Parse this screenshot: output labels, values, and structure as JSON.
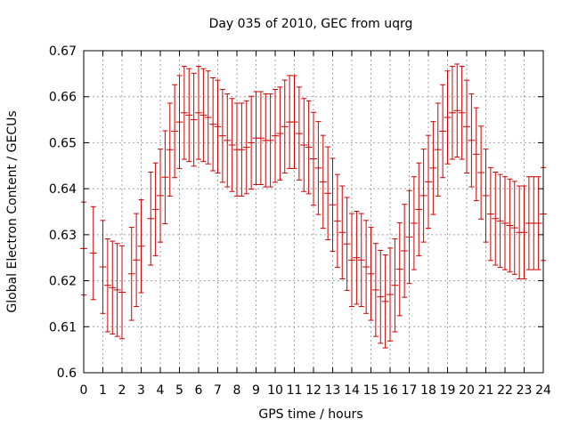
{
  "chart_data": {
    "type": "scatter",
    "title": "Day 035 of 2010, GEC from uqrg",
    "xlabel": "GPS time / hours",
    "ylabel": "Global Electron Content / GECUs",
    "xlim": [
      0,
      24
    ],
    "ylim": [
      0.6,
      0.67
    ],
    "x_ticks": [
      "0",
      "1",
      "2",
      "3",
      "4",
      "5",
      "6",
      "7",
      "8",
      "9",
      "10",
      "11",
      "12",
      "13",
      "14",
      "15",
      "16",
      "17",
      "18",
      "19",
      "20",
      "21",
      "22",
      "23",
      "24"
    ],
    "y_ticks": [
      "0.6",
      "0.61",
      "0.62",
      "0.63",
      "0.64",
      "0.65",
      "0.66",
      "0.67"
    ],
    "grid": true,
    "legend": "none",
    "error_bars": true,
    "color": "#cc0000",
    "series": [
      {
        "x": [
          0.0,
          0.5,
          1.0,
          1.25,
          1.5,
          1.75,
          2.0,
          2.5,
          2.75,
          3.0,
          3.5,
          3.75,
          4.0,
          4.25,
          4.5,
          4.75,
          5.0,
          5.25,
          5.5,
          5.75,
          6.0,
          6.25,
          6.5,
          6.75,
          7.0,
          7.25,
          7.5,
          7.75,
          8.0,
          8.25,
          8.5,
          8.75,
          9.0,
          9.25,
          9.5,
          9.75,
          10.0,
          10.25,
          10.5,
          10.75,
          11.0,
          11.25,
          11.5,
          11.75,
          12.0,
          12.25,
          12.5,
          12.75,
          13.0,
          13.25,
          13.5,
          13.75,
          14.0,
          14.25,
          14.5,
          14.75,
          15.0,
          15.25,
          15.5,
          15.75,
          16.0,
          16.25,
          16.5,
          16.75,
          17.0,
          17.25,
          17.5,
          17.75,
          18.0,
          18.25,
          18.5,
          18.75,
          19.0,
          19.25,
          19.5,
          19.75,
          20.0,
          20.25,
          20.5,
          20.75,
          21.0,
          21.25,
          21.5,
          21.75,
          22.0,
          22.25,
          22.5,
          22.75,
          23.0,
          23.25,
          23.5,
          23.75,
          24.0
        ],
        "y": [
          0.627,
          0.626,
          0.623,
          0.619,
          0.6185,
          0.618,
          0.6175,
          0.6215,
          0.6245,
          0.6275,
          0.6335,
          0.6355,
          0.6385,
          0.6425,
          0.6485,
          0.6525,
          0.6545,
          0.6565,
          0.656,
          0.655,
          0.6565,
          0.656,
          0.6555,
          0.654,
          0.6535,
          0.6515,
          0.6505,
          0.6495,
          0.6485,
          0.6485,
          0.649,
          0.65,
          0.651,
          0.651,
          0.6505,
          0.6505,
          0.6515,
          0.652,
          0.6535,
          0.6545,
          0.6545,
          0.652,
          0.6495,
          0.649,
          0.6465,
          0.6445,
          0.6415,
          0.639,
          0.6365,
          0.633,
          0.6305,
          0.628,
          0.6245,
          0.625,
          0.6245,
          0.623,
          0.6215,
          0.618,
          0.6165,
          0.6155,
          0.617,
          0.619,
          0.6225,
          0.6265,
          0.6295,
          0.6325,
          0.6355,
          0.6385,
          0.6415,
          0.6445,
          0.6485,
          0.6525,
          0.6555,
          0.6565,
          0.657,
          0.6565,
          0.6535,
          0.6505,
          0.6475,
          0.6435,
          0.6385,
          0.6345,
          0.6335,
          0.633,
          0.6325,
          0.632,
          0.6315,
          0.6305,
          0.6305,
          0.6325,
          0.6325,
          0.6325,
          0.6345
        ],
        "error": [
          0.0101,
          0.0101,
          0.0101,
          0.0101,
          0.0101,
          0.0101,
          0.0101,
          0.0101,
          0.0101,
          0.0101,
          0.0101,
          0.0101,
          0.0101,
          0.0101,
          0.0101,
          0.0101,
          0.0101,
          0.0101,
          0.0101,
          0.0101,
          0.0101,
          0.0101,
          0.0101,
          0.0101,
          0.0101,
          0.0101,
          0.0101,
          0.0101,
          0.0101,
          0.0101,
          0.0101,
          0.0101,
          0.0101,
          0.0101,
          0.0101,
          0.0101,
          0.0101,
          0.0101,
          0.0101,
          0.0101,
          0.0101,
          0.0101,
          0.0101,
          0.0101,
          0.0101,
          0.0101,
          0.0101,
          0.0101,
          0.0101,
          0.0101,
          0.0101,
          0.0101,
          0.0101,
          0.0101,
          0.0101,
          0.0101,
          0.0101,
          0.0101,
          0.0101,
          0.0101,
          0.0101,
          0.0101,
          0.0101,
          0.0101,
          0.0101,
          0.0101,
          0.0101,
          0.0101,
          0.0101,
          0.0101,
          0.0101,
          0.0101,
          0.0101,
          0.0101,
          0.0101,
          0.0101,
          0.0101,
          0.0101,
          0.0101,
          0.0101,
          0.0101,
          0.0101,
          0.0101,
          0.0101,
          0.0101,
          0.0101,
          0.0101,
          0.0101,
          0.0101,
          0.0101,
          0.0101,
          0.0101,
          0.0101
        ]
      }
    ]
  }
}
